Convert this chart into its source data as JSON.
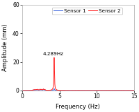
{
  "title": "",
  "xlabel": "Frequency (Hz)",
  "ylabel": "Amplitude (mm)",
  "xlim": [
    0,
    15
  ],
  "ylim": [
    0,
    60
  ],
  "yticks": [
    0,
    20,
    40,
    60
  ],
  "xticks": [
    0,
    5,
    10,
    15
  ],
  "peak_freq": 4.289,
  "peak_amp_s2": 23.0,
  "peak_amp_s1": 1.2,
  "annotation": "4.289Hz",
  "sensor1_color": "#4169E1",
  "sensor2_color": "#FF2020",
  "legend_labels": [
    "Sensor 1",
    "Sensor 2"
  ],
  "noise_freqs": [
    1.5,
    1.7,
    1.9,
    2.1,
    2.4,
    2.6,
    2.85,
    3.05
  ],
  "noise_amps_s2": [
    0.35,
    0.55,
    0.45,
    0.65,
    0.75,
    0.55,
    0.9,
    0.5
  ],
  "noise_amps_s1": [
    0.25,
    0.35,
    0.3,
    0.4,
    0.45,
    0.35,
    0.5,
    0.3
  ],
  "background_color": "#ffffff",
  "figsize": [
    2.01,
    1.62
  ],
  "dpi": 100
}
